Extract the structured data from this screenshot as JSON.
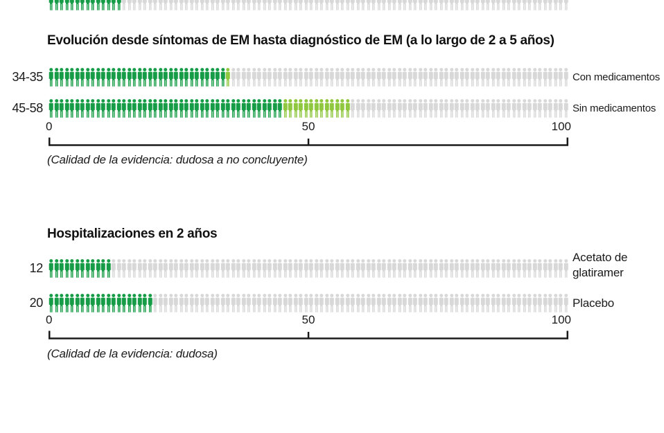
{
  "colors": {
    "dark_green": "#169c46",
    "light_green": "#8fc73e",
    "gray": "#d8d8d8",
    "axis": "#1a1a1a",
    "text": "#111111"
  },
  "cropped_top_row": {
    "dark": 14,
    "light": 0,
    "total": 100
  },
  "charts": [
    {
      "title": "Evolución desde síntomas de EM hasta diagnóstico de EM (a lo largo de 2 a 5 años)",
      "footnote": "(Calidad de la evidencia: dudosa a no concluyente)",
      "axis": {
        "ticks": [
          "0",
          "50",
          "100"
        ]
      },
      "rows": [
        {
          "label": "34-35",
          "right_label": "Con medicamentos",
          "dark": 34,
          "light": 1,
          "total": 100
        },
        {
          "label": "45-58",
          "right_label": "Sin medicamentos",
          "dark": 45,
          "light": 13,
          "total": 100
        }
      ]
    },
    {
      "title": "Hospitalizaciones en 2 años",
      "footnote": "(Calidad de la evidencia: dudosa)",
      "axis": {
        "ticks": [
          "0",
          "50",
          "100"
        ]
      },
      "rows": [
        {
          "label": "12",
          "right_label": "Acetato de glatiramer",
          "dark": 12,
          "light": 0,
          "total": 100
        },
        {
          "label": "20",
          "right_label": "Placebo",
          "dark": 20,
          "light": 0,
          "total": 100
        }
      ]
    }
  ],
  "chart_data": [
    {
      "type": "pictogram",
      "title": "Evolución desde síntomas de EM hasta diagnóstico de EM (a lo largo de 2 a 5 años)",
      "xlim": [
        0,
        100
      ],
      "axis_ticks": [
        0,
        50,
        100
      ],
      "icons_per_row": 100,
      "series": [
        {
          "label": "34-35",
          "name": "Con medicamentos",
          "value_min": 34,
          "value_max": 35,
          "dark_icons": 34,
          "light_icons": 1
        },
        {
          "label": "45-58",
          "name": "Sin medicamentos",
          "value_min": 45,
          "value_max": 58,
          "dark_icons": 45,
          "light_icons": 13
        }
      ],
      "footnote": "(Calidad de la evidencia: dudosa a no concluyente)",
      "legend_position": "right"
    },
    {
      "type": "pictogram",
      "title": "Hospitalizaciones en 2 años",
      "xlim": [
        0,
        100
      ],
      "axis_ticks": [
        0,
        50,
        100
      ],
      "icons_per_row": 100,
      "series": [
        {
          "label": "12",
          "name": "Acetato de glatiramer",
          "value": 12,
          "dark_icons": 12,
          "light_icons": 0
        },
        {
          "label": "20",
          "name": "Placebo",
          "value": 20,
          "dark_icons": 20,
          "light_icons": 0
        }
      ],
      "footnote": "(Calidad de la evidencia: dudosa)",
      "legend_position": "right"
    }
  ]
}
